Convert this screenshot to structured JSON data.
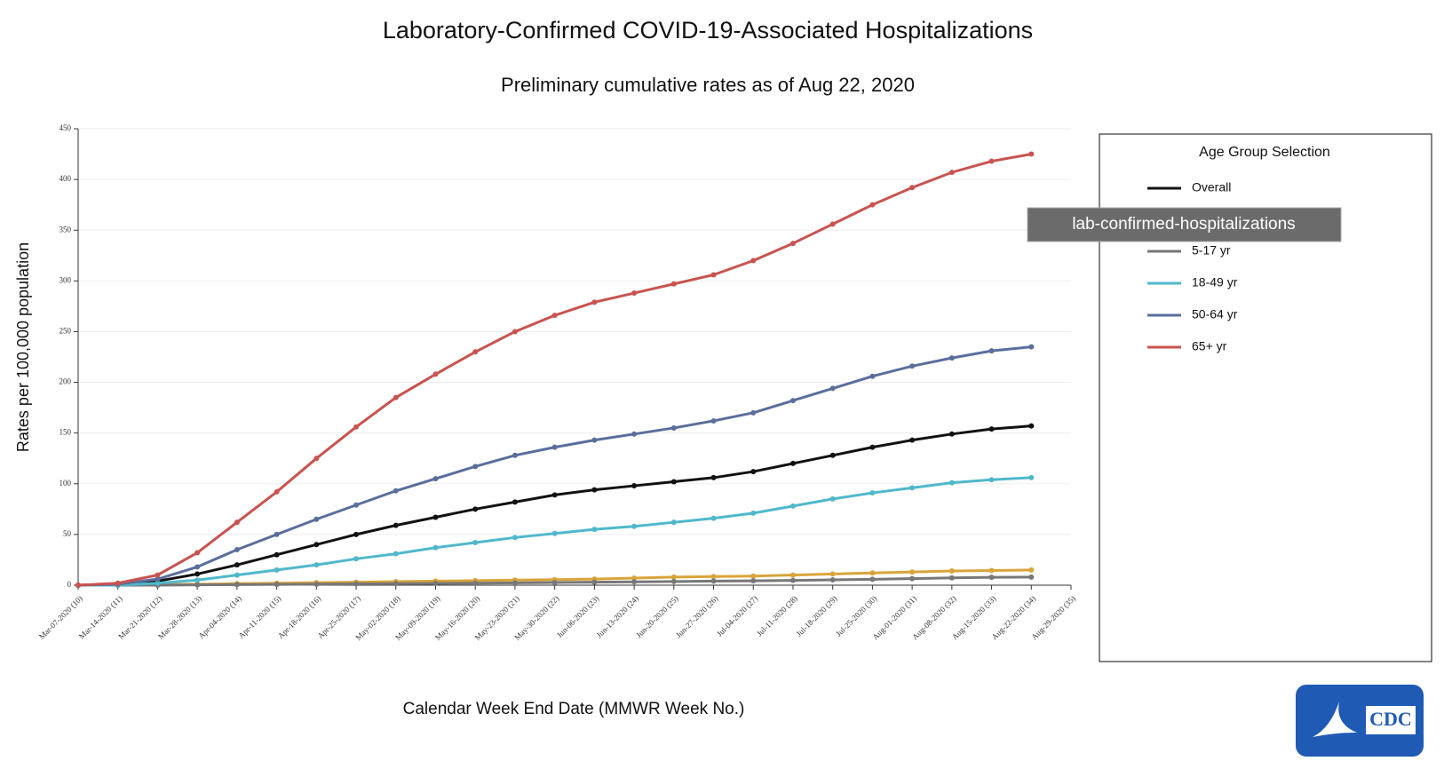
{
  "chart_data": {
    "type": "line",
    "title": "Laboratory-Confirmed COVID-19-Associated Hospitalizations",
    "subtitle": "Preliminary cumulative rates as of Aug 22, 2020",
    "x_label": "Calendar Week End Date (MMWR Week No.)",
    "y_label": "Rates per 100,000 population",
    "legend_title": "Age Group Selection",
    "tooltip": "lab-confirmed-hospitalizations",
    "logo_text": "CDC",
    "categories": [
      "Mar-07-2020 (10)",
      "Mar-14-2020 (11)",
      "Mar-21-2020 (12)",
      "Mar-28-2020 (13)",
      "Apr-04-2020 (14)",
      "Apr-11-2020 (15)",
      "Apr-18-2020 (16)",
      "Apr-25-2020 (17)",
      "May-02-2020 (18)",
      "May-09-2020 (19)",
      "May-16-2020 (20)",
      "May-23-2020 (21)",
      "May-30-2020 (22)",
      "Jun-06-2020 (23)",
      "Jun-13-2020 (24)",
      "Jun-20-2020 (25)",
      "Jun-27-2020 (26)",
      "Jul-04-2020 (27)",
      "Jul-11-2020 (28)",
      "Jul-18-2020 (29)",
      "Jul-25-2020 (30)",
      "Aug-01-2020 (31)",
      "Aug-08-2020 (32)",
      "Aug-15-2020 (33)",
      "Aug-22-2020 (34)",
      "Aug-29-2020 (35)"
    ],
    "ylim": [
      0,
      450
    ],
    "yticks": [
      0,
      50,
      100,
      150,
      200,
      250,
      300,
      350,
      400,
      450
    ],
    "grid": true,
    "series": [
      {
        "name": "Overall",
        "color": "#111111",
        "values": [
          0,
          1,
          4,
          11,
          20,
          30,
          40,
          50,
          59,
          67,
          75,
          82,
          89,
          94,
          98,
          102,
          106,
          112,
          120,
          128,
          136,
          143,
          149,
          154,
          157,
          null
        ]
      },
      {
        "color": "#d9a43a",
        "values": [
          0,
          0,
          0.5,
          1,
          1.5,
          2,
          2.5,
          3,
          3.5,
          4,
          4.5,
          5,
          5.5,
          6,
          7,
          8,
          8.5,
          9,
          10,
          11,
          12,
          13,
          14,
          14.5,
          15,
          null
        ]
      },
      {
        "name": "5-17 yr",
        "color": "#777777",
        "values": [
          0,
          0,
          0,
          0.3,
          0.5,
          0.8,
          1,
          1.3,
          1.5,
          1.8,
          2,
          2.3,
          2.6,
          3,
          3.3,
          3.6,
          4,
          4.3,
          4.7,
          5.2,
          5.8,
          6.5,
          7.2,
          7.8,
          8,
          null
        ]
      },
      {
        "name": "18-49 yr",
        "color": "#4fb8cc",
        "values": [
          0,
          0,
          2,
          5,
          10,
          15,
          20,
          26,
          31,
          37,
          42,
          47,
          51,
          55,
          58,
          62,
          66,
          71,
          78,
          85,
          91,
          96,
          101,
          104,
          106,
          null
        ]
      },
      {
        "name": "50-64 yr",
        "color": "#5a6e9c",
        "values": [
          0,
          1,
          6,
          18,
          35,
          50,
          65,
          79,
          93,
          105,
          117,
          128,
          136,
          143,
          149,
          155,
          162,
          170,
          182,
          194,
          206,
          216,
          224,
          231,
          235,
          null
        ]
      },
      {
        "name": "65+ yr",
        "color": "#c9534f",
        "values": [
          0,
          2,
          10,
          32,
          62,
          92,
          125,
          156,
          185,
          208,
          230,
          250,
          266,
          279,
          288,
          297,
          306,
          320,
          337,
          356,
          375,
          392,
          407,
          418,
          425,
          null
        ]
      }
    ]
  }
}
